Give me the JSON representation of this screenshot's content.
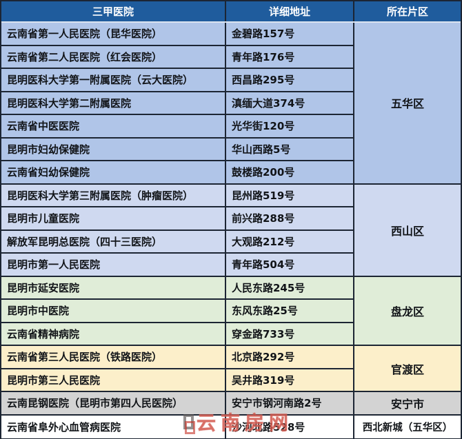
{
  "table": {
    "headers": [
      "三甲医院",
      "详细地址",
      "所在片区"
    ],
    "header_bg": "#1f5c9d",
    "border_color": "#1c2533",
    "sections": [
      {
        "district": "五华区",
        "bg": "#b0c5e8",
        "rows": [
          {
            "hospital": "云南省第一人民医院（昆华医院）",
            "address": "金碧路157号"
          },
          {
            "hospital": "云南省第二人民医院（红会医院）",
            "address": "青年路176号"
          },
          {
            "hospital": "昆明医科大学第一附属医院（云大医院）",
            "address": "西昌路295号"
          },
          {
            "hospital": "昆明医科大学第二附属医院",
            "address": "滇缅大道374号"
          },
          {
            "hospital": "云南省中医医院",
            "address": "光华街120号"
          },
          {
            "hospital": "昆明市妇幼保健院",
            "address": "华山西路5号"
          },
          {
            "hospital": "云南省妇幼保健院",
            "address": "鼓楼路200号"
          }
        ]
      },
      {
        "district": "西山区",
        "bg": "#cfd9f0",
        "rows": [
          {
            "hospital": "昆明医科大学第三附属医院（肿瘤医院）",
            "address": "昆州路519号"
          },
          {
            "hospital": "昆明市儿童医院",
            "address": "前兴路288号"
          },
          {
            "hospital": "解放军昆明总医院（四十三医院）",
            "address": "大观路212号"
          },
          {
            "hospital": "昆明市第一人民医院",
            "address": "青年路504号"
          }
        ]
      },
      {
        "district": "盘龙区",
        "bg": "#e0edd8",
        "rows": [
          {
            "hospital": "昆明市延安医院",
            "address": "人民东路245号"
          },
          {
            "hospital": "昆明市中医院",
            "address": "东风东路25号"
          },
          {
            "hospital": "云南省精神病院",
            "address": "穿金路733号"
          }
        ]
      },
      {
        "district": "官渡区",
        "bg": "#fcefca",
        "rows": [
          {
            "hospital": "云南省第三人民医院（铁路医院）",
            "address": "北京路292号"
          },
          {
            "hospital": "昆明市第三人民医院",
            "address": "吴井路319号"
          }
        ]
      },
      {
        "district": "安宁市",
        "bg": "#d3d3d3",
        "rows": [
          {
            "hospital": "云南昆钢医院（昆明市第四人民医院）",
            "address": "安宁市钢河南路2号"
          }
        ]
      },
      {
        "district": "西北新城（五华区）",
        "bg": "#ffffff",
        "rows": [
          {
            "hospital": "云南省阜外心血管病医院",
            "address": "沙河北路528号"
          }
        ]
      }
    ]
  },
  "watermark": {
    "text": "云南房网",
    "color": "#c63126"
  },
  "chart_data": {
    "type": "table",
    "title": "",
    "columns": [
      "三甲医院",
      "详细地址",
      "所在片区"
    ],
    "rows": [
      [
        "云南省第一人民医院（昆华医院）",
        "金碧路157号",
        "五华区"
      ],
      [
        "云南省第二人民医院（红会医院）",
        "青年路176号",
        "五华区"
      ],
      [
        "昆明医科大学第一附属医院（云大医院）",
        "西昌路295号",
        "五华区"
      ],
      [
        "昆明医科大学第二附属医院",
        "滇缅大道374号",
        "五华区"
      ],
      [
        "云南省中医医院",
        "光华街120号",
        "五华区"
      ],
      [
        "昆明市妇幼保健院",
        "华山西路5号",
        "五华区"
      ],
      [
        "云南省妇幼保健院",
        "鼓楼路200号",
        "五华区"
      ],
      [
        "昆明医科大学第三附属医院（肿瘤医院）",
        "昆州路519号",
        "西山区"
      ],
      [
        "昆明市儿童医院",
        "前兴路288号",
        "西山区"
      ],
      [
        "解放军昆明总医院（四十三医院）",
        "大观路212号",
        "西山区"
      ],
      [
        "昆明市第一人民医院",
        "青年路504号",
        "西山区"
      ],
      [
        "昆明市延安医院",
        "人民东路245号",
        "盘龙区"
      ],
      [
        "昆明市中医院",
        "东风东路25号",
        "盘龙区"
      ],
      [
        "云南省精神病院",
        "穿金路733号",
        "盘龙区"
      ],
      [
        "云南省第三人民医院（铁路医院）",
        "北京路292号",
        "官渡区"
      ],
      [
        "昆明市第三人民医院",
        "吴井路319号",
        "官渡区"
      ],
      [
        "云南昆钢医院（昆明市第四人民医院）",
        "安宁市钢河南路2号",
        "安宁市"
      ],
      [
        "云南省阜外心血管病医院",
        "沙河北路528号",
        "西北新城（五华区）"
      ]
    ]
  }
}
